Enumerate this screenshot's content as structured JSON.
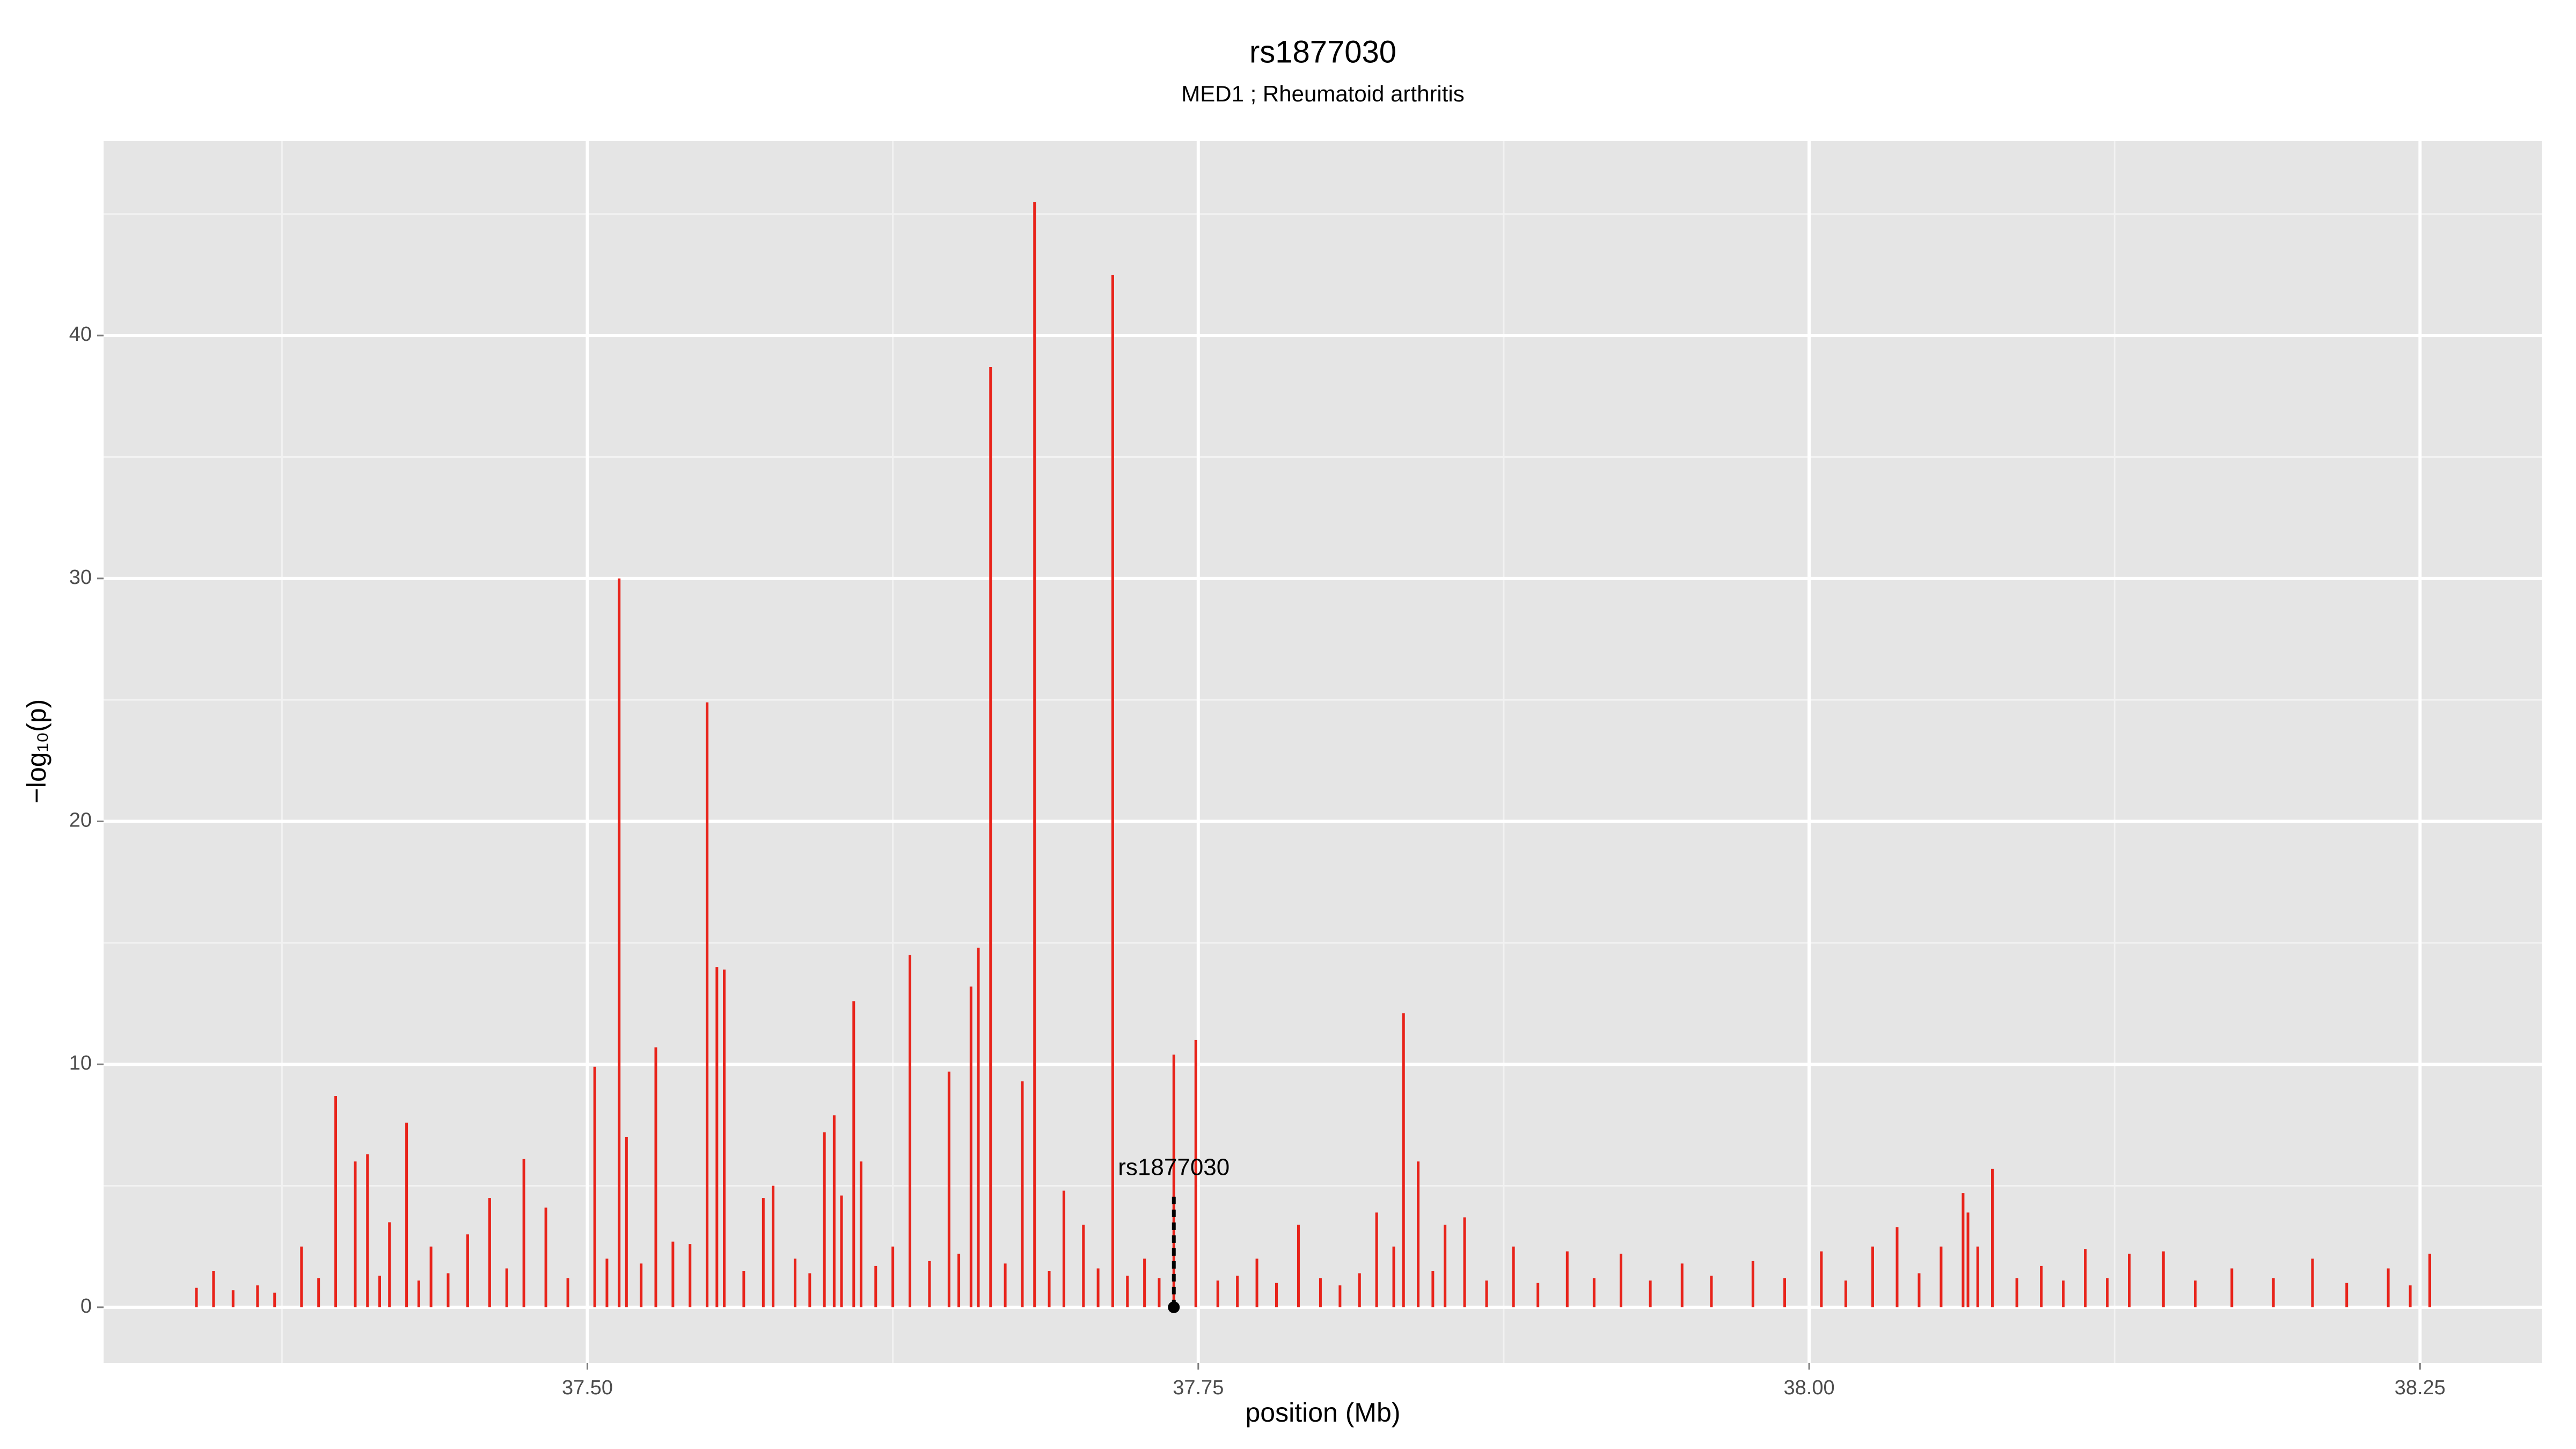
{
  "chart_data": {
    "type": "spike",
    "title": "rs1877030",
    "subtitle": "MED1 ; Rheumatoid arthritis",
    "x_label": "position (Mb)",
    "y_label": "−log₁₀(p)",
    "series": [
      {
        "color": "#e8231a",
        "x": [
          37.34,
          37.347,
          37.355,
          37.365,
          37.372,
          37.383,
          37.39,
          37.397,
          37.405,
          37.41,
          37.415,
          37.419,
          37.426,
          37.431,
          37.436,
          37.443,
          37.451,
          37.46,
          37.467,
          37.474,
          37.483,
          37.492,
          37.503,
          37.508,
          37.513,
          37.516,
          37.522,
          37.528,
          37.535,
          37.542,
          37.549,
          37.553,
          37.556,
          37.564,
          37.572,
          37.576,
          37.585,
          37.591,
          37.597,
          37.601,
          37.604,
          37.609,
          37.612,
          37.618,
          37.625,
          37.632,
          37.64,
          37.648,
          37.652,
          37.657,
          37.66,
          37.665,
          37.671,
          37.678,
          37.683,
          37.689,
          37.695,
          37.703,
          37.709,
          37.715,
          37.721,
          37.728,
          37.734,
          37.74,
          37.749,
          37.758,
          37.766,
          37.774,
          37.782,
          37.791,
          37.8,
          37.808,
          37.816,
          37.823,
          37.83,
          37.834,
          37.84,
          37.846,
          37.851,
          37.859,
          37.868,
          37.879,
          37.889,
          37.901,
          37.912,
          37.923,
          37.935,
          37.948,
          37.96,
          37.977,
          37.99,
          38.005,
          38.015,
          38.026,
          38.036,
          38.045,
          38.054,
          38.063,
          38.065,
          38.069,
          38.075,
          38.085,
          38.095,
          38.104,
          38.113,
          38.122,
          38.131,
          38.145,
          38.158,
          38.173,
          38.19,
          38.206,
          38.22,
          38.237,
          38.246,
          38.254
        ],
        "values": [
          0.8,
          1.5,
          0.7,
          0.9,
          0.6,
          2.5,
          1.2,
          8.7,
          6.0,
          6.3,
          1.3,
          3.5,
          7.6,
          1.1,
          2.5,
          1.4,
          3.0,
          4.5,
          1.6,
          6.1,
          4.1,
          1.2,
          9.9,
          2.0,
          30.0,
          7.0,
          1.8,
          10.7,
          2.7,
          2.6,
          24.9,
          14.0,
          13.9,
          1.5,
          4.5,
          5.0,
          2.0,
          1.4,
          7.2,
          7.9,
          4.6,
          12.6,
          6.0,
          1.7,
          2.5,
          14.5,
          1.9,
          9.7,
          2.2,
          13.2,
          14.8,
          38.7,
          1.8,
          9.3,
          45.5,
          1.5,
          4.8,
          3.4,
          1.6,
          42.5,
          1.3,
          2.0,
          1.2,
          10.4,
          11.0,
          1.1,
          1.3,
          2.0,
          1.0,
          3.4,
          1.2,
          0.9,
          1.4,
          3.9,
          2.5,
          12.1,
          6.0,
          1.5,
          3.4,
          3.7,
          1.1,
          2.5,
          1.0,
          2.3,
          1.2,
          2.2,
          1.1,
          1.8,
          1.3,
          1.9,
          1.2,
          2.3,
          1.1,
          2.5,
          3.3,
          1.4,
          2.5,
          4.7,
          3.9,
          2.5,
          5.7,
          1.2,
          1.7,
          1.1,
          2.4,
          1.2,
          2.2,
          2.3,
          1.1,
          1.6,
          1.2,
          2.0,
          1.0,
          1.6,
          0.9,
          2.2
        ]
      }
    ],
    "annotation": {
      "label": "rs1877030",
      "x": 37.74,
      "y": 4.6
    },
    "xlim": [
      37.302,
      38.3
    ],
    "xticks": [
      {
        "value": 37.5,
        "label": "37.50"
      },
      {
        "value": 37.75,
        "label": "37.75"
      },
      {
        "value": 38.0,
        "label": "38.00"
      },
      {
        "value": 38.25,
        "label": "38.25"
      }
    ],
    "x_minor_grid": [
      37.375,
      37.625,
      37.875,
      38.125
    ],
    "ylim": [
      -2.3,
      48
    ],
    "yticks": [
      0,
      10,
      20,
      30,
      40
    ],
    "y_minor_grid": [
      5,
      15,
      25,
      35,
      45
    ],
    "grid": true
  }
}
